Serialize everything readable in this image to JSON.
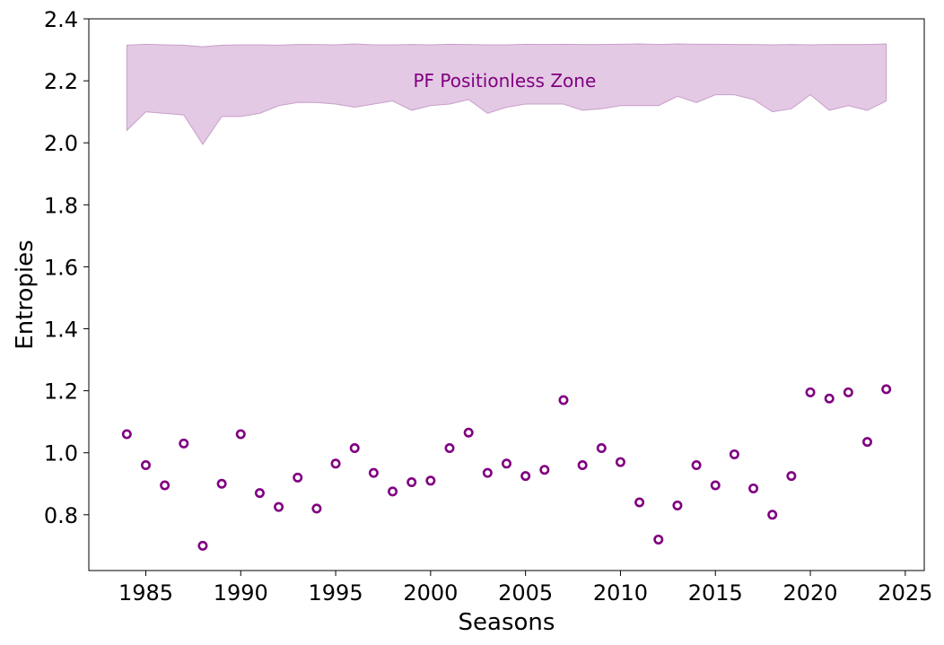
{
  "chart_data": {
    "type": "scatter",
    "title": "",
    "xlabel": "Seasons",
    "ylabel": "Entropies",
    "xlim": [
      1982,
      2026
    ],
    "ylim": [
      0.62,
      2.4
    ],
    "x_ticks": [
      1985,
      1990,
      1995,
      2000,
      2005,
      2010,
      2015,
      2020,
      2025
    ],
    "y_ticks": [
      0.8,
      1.0,
      1.2,
      1.4,
      1.6,
      1.8,
      2.0,
      2.2,
      2.4
    ],
    "x_tick_labels": [
      "1985",
      "1990",
      "1995",
      "2000",
      "2005",
      "2010",
      "2015",
      "2020",
      "2025"
    ],
    "y_tick_labels": [
      "0.8",
      "1.0",
      "1.2",
      "1.4",
      "1.6",
      "1.8",
      "2.0",
      "2.2",
      "2.4"
    ],
    "grid": false,
    "legend": "none",
    "colors": {
      "points": "#800080",
      "zone_fill": "#e3c9e4",
      "zone_edge": "#c99fca",
      "zone_text": "#800080"
    },
    "series": [
      {
        "x": [
          1984,
          1985,
          1986,
          1987,
          1988,
          1989,
          1990,
          1991,
          1992,
          1993,
          1994,
          1995,
          1996,
          1997,
          1998,
          1999,
          2000,
          2001,
          2002,
          2003,
          2004,
          2005,
          2006,
          2007,
          2008,
          2009,
          2010,
          2011,
          2012,
          2013,
          2014,
          2015,
          2016,
          2017,
          2018,
          2019,
          2020,
          2021,
          2022,
          2023,
          2024
        ],
        "y": [
          1.06,
          0.96,
          0.895,
          1.03,
          0.7,
          0.9,
          1.06,
          0.87,
          0.825,
          0.92,
          0.82,
          0.965,
          1.015,
          0.935,
          0.875,
          0.905,
          0.91,
          1.015,
          1.065,
          0.935,
          0.965,
          0.925,
          0.945,
          1.17,
          0.96,
          1.015,
          0.97,
          0.84,
          0.72,
          0.83,
          0.96,
          0.895,
          0.995,
          0.885,
          0.8,
          0.925,
          1.195,
          1.175,
          1.195,
          1.035,
          1.205
        ]
      }
    ],
    "zone": {
      "label": "PF Positionless Zone",
      "x": [
        1984,
        1985,
        1986,
        1987,
        1988,
        1989,
        1990,
        1991,
        1992,
        1993,
        1994,
        1995,
        1996,
        1997,
        1998,
        1999,
        2000,
        2001,
        2002,
        2003,
        2004,
        2005,
        2006,
        2007,
        2008,
        2009,
        2010,
        2011,
        2012,
        2013,
        2014,
        2015,
        2016,
        2017,
        2018,
        2019,
        2020,
        2021,
        2022,
        2023,
        2024
      ],
      "lower": [
        2.04,
        2.1,
        2.095,
        2.09,
        1.995,
        2.085,
        2.085,
        2.095,
        2.12,
        2.13,
        2.13,
        2.125,
        2.115,
        2.125,
        2.135,
        2.105,
        2.12,
        2.125,
        2.14,
        2.095,
        2.115,
        2.125,
        2.125,
        2.125,
        2.105,
        2.11,
        2.12,
        2.12,
        2.12,
        2.15,
        2.13,
        2.155,
        2.155,
        2.14,
        2.1,
        2.11,
        2.155,
        2.105,
        2.12,
        2.105,
        2.135
      ],
      "upper": [
        2.315,
        2.318,
        2.316,
        2.315,
        2.31,
        2.315,
        2.316,
        2.316,
        2.315,
        2.317,
        2.317,
        2.316,
        2.319,
        2.316,
        2.316,
        2.317,
        2.316,
        2.318,
        2.317,
        2.316,
        2.316,
        2.318,
        2.317,
        2.318,
        2.317,
        2.317,
        2.318,
        2.319,
        2.317,
        2.319,
        2.318,
        2.318,
        2.317,
        2.317,
        2.316,
        2.317,
        2.316,
        2.317,
        2.317,
        2.317,
        2.319
      ]
    }
  }
}
